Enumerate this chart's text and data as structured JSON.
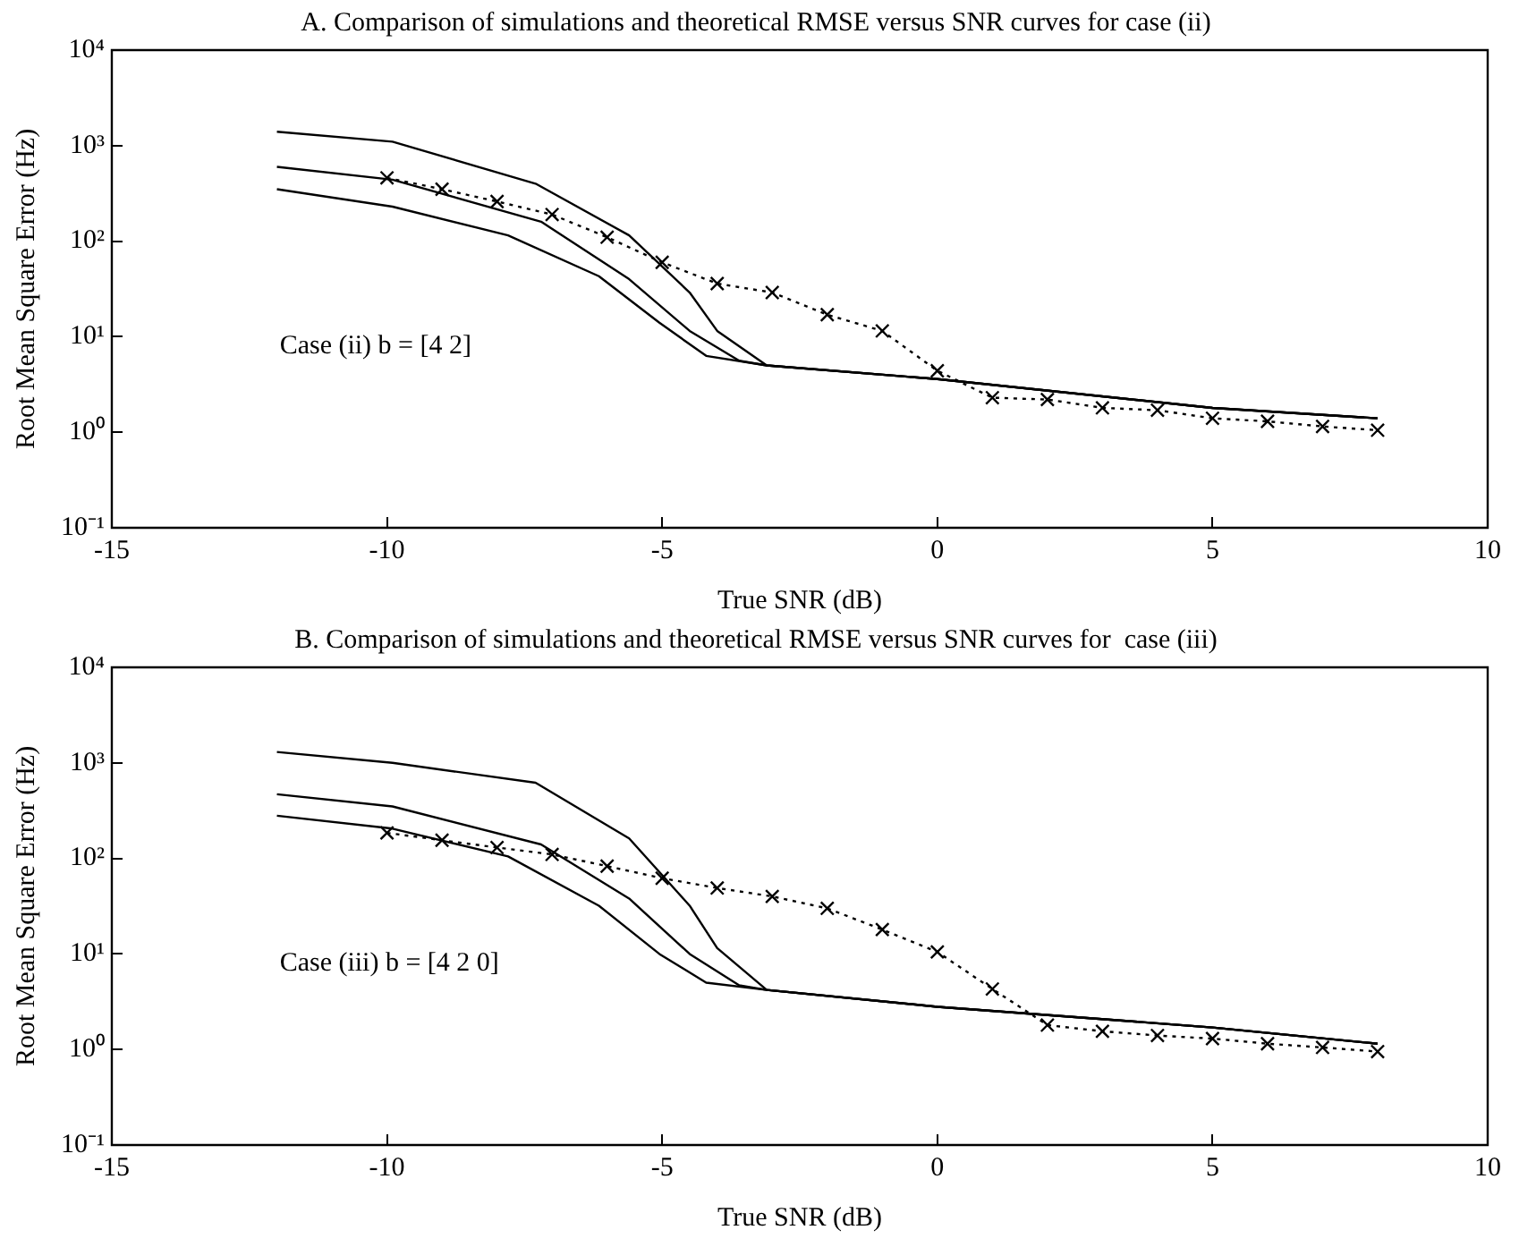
{
  "chart_data": [
    {
      "type": "line",
      "title": "A. Comparison of simulations and theoretical RMSE versus SNR curves for case (ii)",
      "xlabel": "True SNR (dB)",
      "ylabel": "Root Mean Square Error (Hz)",
      "annotations": [
        "Case (ii) b = [4 2]"
      ],
      "log": "y",
      "grid": false,
      "legend": false,
      "xlim": [
        -15,
        10
      ],
      "xticks": [
        -15,
        -10,
        -5,
        0,
        5,
        10
      ],
      "ylim": [
        0.1,
        10000
      ],
      "yticks": [
        {
          "value": 0.1,
          "label": "10⁻¹"
        },
        {
          "value": 1,
          "label": "10⁰"
        },
        {
          "value": 10,
          "label": "10¹"
        },
        {
          "value": 100,
          "label": "10²"
        },
        {
          "value": 1000,
          "label": "10³"
        },
        {
          "value": 10000,
          "label": "10⁴"
        }
      ],
      "series": [
        {
          "type": "line",
          "color": "#000000",
          "marker": "none",
          "line_style": "solid",
          "x": [
            -12,
            -9.9,
            -7.3,
            -5.6,
            -4.5,
            -4,
            -3.1,
            0,
            5,
            8
          ],
          "values": [
            1400,
            1100,
            400,
            115,
            29,
            11.5,
            5,
            3.6,
            1.8,
            1.4
          ]
        },
        {
          "type": "line",
          "color": "#000000",
          "marker": "none",
          "line_style": "solid",
          "x": [
            -12,
            -9.9,
            -7.2,
            -5.6,
            -4.5,
            -3.6,
            -3.1,
            0,
            5,
            8
          ],
          "values": [
            600,
            440,
            160,
            40,
            11.5,
            5.6,
            5,
            3.6,
            1.8,
            1.4
          ]
        },
        {
          "type": "line",
          "color": "#000000",
          "marker": "none",
          "line_style": "solid",
          "x": [
            -12,
            -9.9,
            -7.8,
            -6.15,
            -5.05,
            -4.2,
            -3.1,
            0,
            5,
            8
          ],
          "values": [
            350,
            230,
            115,
            43,
            14,
            6.3,
            5,
            3.6,
            1.8,
            1.4
          ]
        },
        {
          "type": "line",
          "color": "#000000",
          "marker": "cross",
          "line_style": "dotted",
          "x": [
            -10,
            -9,
            -8,
            -7,
            -6,
            -5,
            -4,
            -3,
            -2,
            -1,
            0,
            1,
            2,
            3,
            4,
            5,
            6,
            7,
            8
          ],
          "values": [
            460,
            350,
            260,
            190,
            110,
            60,
            36,
            29,
            17,
            11.5,
            4.4,
            2.3,
            2.2,
            1.8,
            1.7,
            1.4,
            1.3,
            1.15,
            1.05
          ]
        }
      ]
    },
    {
      "type": "line",
      "title": "B. Comparison of simulations and theoretical RMSE versus SNR curves for  case (iii)",
      "xlabel": "True SNR (dB)",
      "ylabel": "Root Mean Square Error (Hz)",
      "annotations": [
        "Case (iii) b = [4 2 0]"
      ],
      "log": "y",
      "grid": false,
      "legend": false,
      "xlim": [
        -15,
        10
      ],
      "xticks": [
        -15,
        -10,
        -5,
        0,
        5,
        10
      ],
      "ylim": [
        0.1,
        10000
      ],
      "yticks": [
        {
          "value": 0.1,
          "label": "10⁻¹"
        },
        {
          "value": 1,
          "label": "10⁰"
        },
        {
          "value": 10,
          "label": "10¹"
        },
        {
          "value": 100,
          "label": "10²"
        },
        {
          "value": 1000,
          "label": "10³"
        },
        {
          "value": 10000,
          "label": "10⁴"
        }
      ],
      "series": [
        {
          "type": "line",
          "color": "#000000",
          "marker": "none",
          "line_style": "solid",
          "x": [
            -12,
            -9.9,
            -7.3,
            -5.6,
            -4.5,
            -4,
            -3.1,
            0,
            5,
            8
          ],
          "values": [
            1300,
            1000,
            620,
            162,
            32,
            11.5,
            4.2,
            2.8,
            1.7,
            1.15
          ]
        },
        {
          "type": "line",
          "color": "#000000",
          "marker": "none",
          "line_style": "solid",
          "x": [
            -12,
            -9.9,
            -7.2,
            -5.6,
            -4.5,
            -3.6,
            -3.1,
            0,
            5,
            8
          ],
          "values": [
            470,
            350,
            140,
            38,
            10,
            4.7,
            4.2,
            2.8,
            1.7,
            1.15
          ]
        },
        {
          "type": "line",
          "color": "#000000",
          "marker": "none",
          "line_style": "solid",
          "x": [
            -12,
            -9.9,
            -7.8,
            -6.15,
            -5.05,
            -4.2,
            -3.1,
            0,
            5,
            8
          ],
          "values": [
            280,
            205,
            105,
            32,
            10,
            5,
            4.2,
            2.8,
            1.7,
            1.15
          ]
        },
        {
          "type": "line",
          "color": "#000000",
          "marker": "cross",
          "line_style": "dotted",
          "x": [
            -10,
            -9,
            -8,
            -7,
            -6,
            -5,
            -4,
            -3,
            -2,
            -1,
            0,
            1,
            2,
            3,
            4,
            5,
            6,
            7,
            8
          ],
          "values": [
            185,
            155,
            130,
            110,
            83,
            62,
            49,
            40,
            30,
            18,
            10.5,
            4.3,
            1.8,
            1.55,
            1.4,
            1.3,
            1.15,
            1.05,
            0.95
          ]
        }
      ]
    }
  ]
}
